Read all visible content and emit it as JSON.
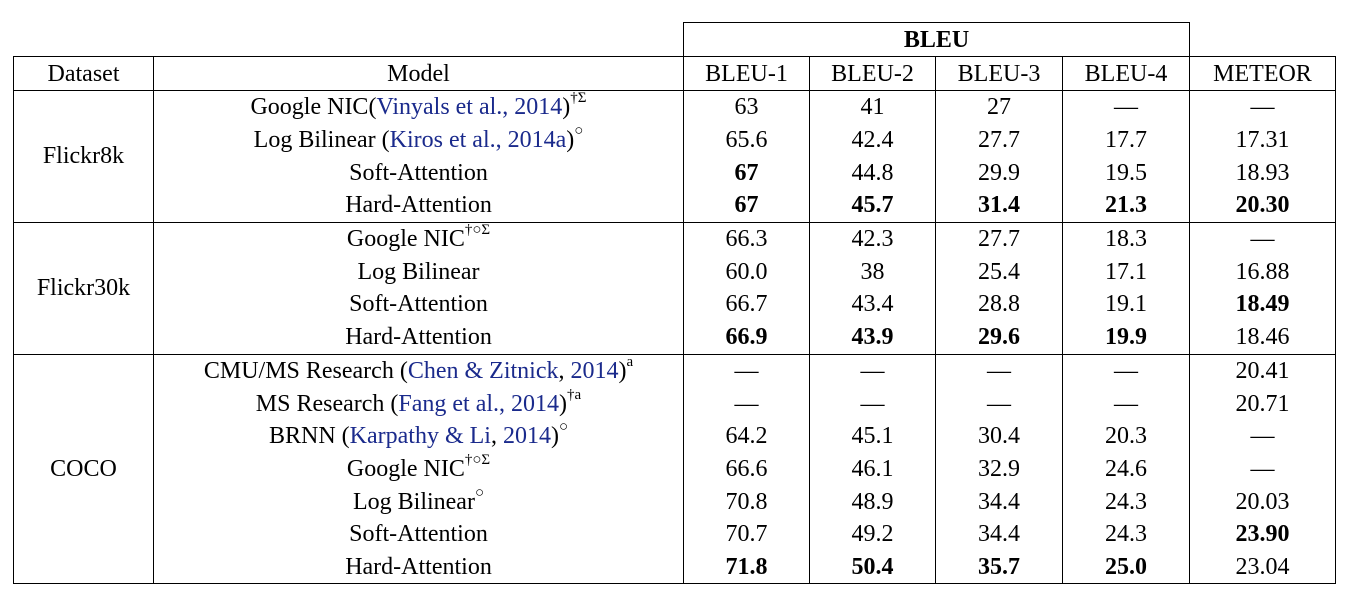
{
  "header": {
    "bleu_group": "BLEU",
    "dataset": "Dataset",
    "model": "Model",
    "bleu1": "BLEU-1",
    "bleu2": "BLEU-2",
    "bleu3": "BLEU-3",
    "bleu4": "BLEU-4",
    "meteor": "METEOR"
  },
  "groups": [
    {
      "dataset": "Flickr8k",
      "rows": [
        {
          "model": "Google NIC",
          "cite_pre": "(",
          "cite": "Vinyals et al., 2014",
          "cite_post": ")",
          "sup": "†Σ",
          "values": [
            "63",
            "41",
            "27",
            "—",
            "—"
          ],
          "bold": [
            false,
            false,
            false,
            false,
            false
          ]
        },
        {
          "model": "Log Bilinear ",
          "cite_pre": "(",
          "cite": "Kiros et al., 2014a",
          "cite_post": ")",
          "sup": "○",
          "values": [
            "65.6",
            "42.4",
            "27.7",
            "17.7",
            "17.31"
          ],
          "bold": [
            false,
            false,
            false,
            false,
            false
          ]
        },
        {
          "model": "Soft-Attention",
          "values": [
            "67",
            "44.8",
            "29.9",
            "19.5",
            "18.93"
          ],
          "bold": [
            true,
            false,
            false,
            false,
            false
          ]
        },
        {
          "model": "Hard-Attention",
          "values": [
            "67",
            "45.7",
            "31.4",
            "21.3",
            "20.30"
          ],
          "bold": [
            true,
            true,
            true,
            true,
            true
          ]
        }
      ]
    },
    {
      "dataset": "Flickr30k",
      "rows": [
        {
          "model": "Google NIC",
          "sup": "†○Σ",
          "values": [
            "66.3",
            "42.3",
            "27.7",
            "18.3",
            "—"
          ],
          "bold": [
            false,
            false,
            false,
            false,
            false
          ]
        },
        {
          "model": "Log Bilinear",
          "values": [
            "60.0",
            "38",
            "25.4",
            "17.1",
            "16.88"
          ],
          "bold": [
            false,
            false,
            false,
            false,
            false
          ]
        },
        {
          "model": "Soft-Attention",
          "values": [
            "66.7",
            "43.4",
            "28.8",
            "19.1",
            "18.49"
          ],
          "bold": [
            false,
            false,
            false,
            false,
            true
          ]
        },
        {
          "model": "Hard-Attention",
          "values": [
            "66.9",
            "43.9",
            "29.6",
            "19.9",
            "18.46"
          ],
          "bold": [
            true,
            true,
            true,
            true,
            false
          ]
        }
      ]
    },
    {
      "dataset": "COCO",
      "rows": [
        {
          "model": "CMU/MS Research ",
          "cite_pre": "(",
          "cite": "Chen & Zitnick",
          "cite_post": ", ",
          "cite2": "2014",
          "cite_post2": ")",
          "sup": "a",
          "values": [
            "—",
            "—",
            "—",
            "—",
            "20.41"
          ],
          "bold": [
            false,
            false,
            false,
            false,
            false
          ]
        },
        {
          "model": "MS Research ",
          "cite_pre": "(",
          "cite": "Fang et al., 2014",
          "cite_post": ")",
          "sup": "†a",
          "values": [
            "—",
            "—",
            "—",
            "—",
            "20.71"
          ],
          "bold": [
            false,
            false,
            false,
            false,
            false
          ]
        },
        {
          "model": "BRNN ",
          "cite_pre": "(",
          "cite": "Karpathy & Li",
          "cite_post": ", ",
          "cite2": "2014",
          "cite_post2": ")",
          "sup": "○",
          "values": [
            "64.2",
            "45.1",
            "30.4",
            "20.3",
            "—"
          ],
          "bold": [
            false,
            false,
            false,
            false,
            false
          ]
        },
        {
          "model": "Google NIC",
          "sup": "†○Σ",
          "values": [
            "66.6",
            "46.1",
            "32.9",
            "24.6",
            "—"
          ],
          "bold": [
            false,
            false,
            false,
            false,
            false
          ]
        },
        {
          "model": "Log Bilinear",
          "sup": "○",
          "values": [
            "70.8",
            "48.9",
            "34.4",
            "24.3",
            "20.03"
          ],
          "bold": [
            false,
            false,
            false,
            false,
            false
          ]
        },
        {
          "model": "Soft-Attention",
          "values": [
            "70.7",
            "49.2",
            "34.4",
            "24.3",
            "23.90"
          ],
          "bold": [
            false,
            false,
            false,
            false,
            true
          ]
        },
        {
          "model": "Hard-Attention",
          "values": [
            "71.8",
            "50.4",
            "35.7",
            "25.0",
            "23.04"
          ],
          "bold": [
            true,
            true,
            true,
            true,
            false
          ]
        }
      ]
    }
  ]
}
